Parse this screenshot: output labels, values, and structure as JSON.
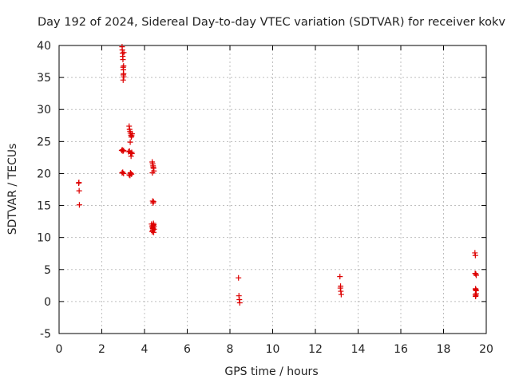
{
  "chart_data": {
    "type": "scatter",
    "title": "Day 192 of 2024, Sidereal Day-to-day VTEC variation (SDTVAR) for receiver kokv",
    "xlabel": "GPS time / hours",
    "ylabel": "SDTVAR / TECUs",
    "xlim": [
      0,
      20
    ],
    "ylim": [
      -5,
      40
    ],
    "xticks": [
      "0",
      "2",
      "4",
      "6",
      "8",
      "10",
      "12",
      "14",
      "16",
      "18",
      "20"
    ],
    "yticks": [
      "-5",
      "0",
      "5",
      "10",
      "15",
      "20",
      "25",
      "30",
      "35",
      "40"
    ],
    "grid": true,
    "marker": "+",
    "color": "#dd0000",
    "series": [
      {
        "name": "SDTVAR",
        "x": [
          0.92,
          0.93,
          0.94,
          0.95,
          2.95,
          2.96,
          2.97,
          2.98,
          2.99,
          3.0,
          3.01,
          3.02,
          3.03,
          3.0,
          3.01,
          3.02,
          3.03,
          2.93,
          2.96,
          2.99,
          3.02,
          2.95,
          2.98,
          3.02,
          3.28,
          3.3,
          3.32,
          3.34,
          3.36,
          3.38,
          3.4,
          3.42,
          3.33,
          3.37,
          3.41,
          3.25,
          3.3,
          3.35,
          3.4,
          3.28,
          3.34,
          3.39,
          3.32,
          3.36,
          4.36,
          4.38,
          4.4,
          4.42,
          4.44,
          4.37,
          4.41,
          4.38,
          4.4,
          4.42,
          4.33,
          4.35,
          4.37,
          4.39,
          4.41,
          4.43,
          4.45,
          4.36,
          4.4,
          4.44,
          4.38,
          4.42,
          4.39,
          4.43,
          8.4,
          8.42,
          8.44,
          8.46,
          13.15,
          13.17,
          13.19,
          13.21,
          13.18,
          19.47,
          19.49,
          19.51,
          19.53,
          19.48,
          19.5,
          19.52,
          19.5,
          19.52,
          19.49,
          19.51,
          19.53,
          19.5
        ],
        "y": [
          18.5,
          18.6,
          17.3,
          15.1,
          39.8,
          39.3,
          38.8,
          38.3,
          37.8,
          36.6,
          36.2,
          35.6,
          35.1,
          34.6,
          35.4,
          36.8,
          38.9,
          23.6,
          23.7,
          23.5,
          23.6,
          20.1,
          20.2,
          20.0,
          27.4,
          26.9,
          26.6,
          26.3,
          26.0,
          25.7,
          25.9,
          26.2,
          24.9,
          22.7,
          23.1,
          23.4,
          23.5,
          23.2,
          23.3,
          19.8,
          20.1,
          19.9,
          19.7,
          20.0,
          21.8,
          21.5,
          21.2,
          20.8,
          20.4,
          20.1,
          21.0,
          15.7,
          15.4,
          15.6,
          12.1,
          11.8,
          11.5,
          11.2,
          11.9,
          12.0,
          11.3,
          10.9,
          11.6,
          11.7,
          11.1,
          12.2,
          11.4,
          10.8,
          3.7,
          0.9,
          0.3,
          -0.2,
          3.9,
          2.1,
          1.6,
          1.1,
          2.4,
          7.6,
          7.2,
          4.3,
          4.1,
          4.4,
          1.9,
          1.7,
          2.0,
          1.8,
          1.1,
          0.9,
          1.2,
          0.8
        ]
      }
    ]
  }
}
